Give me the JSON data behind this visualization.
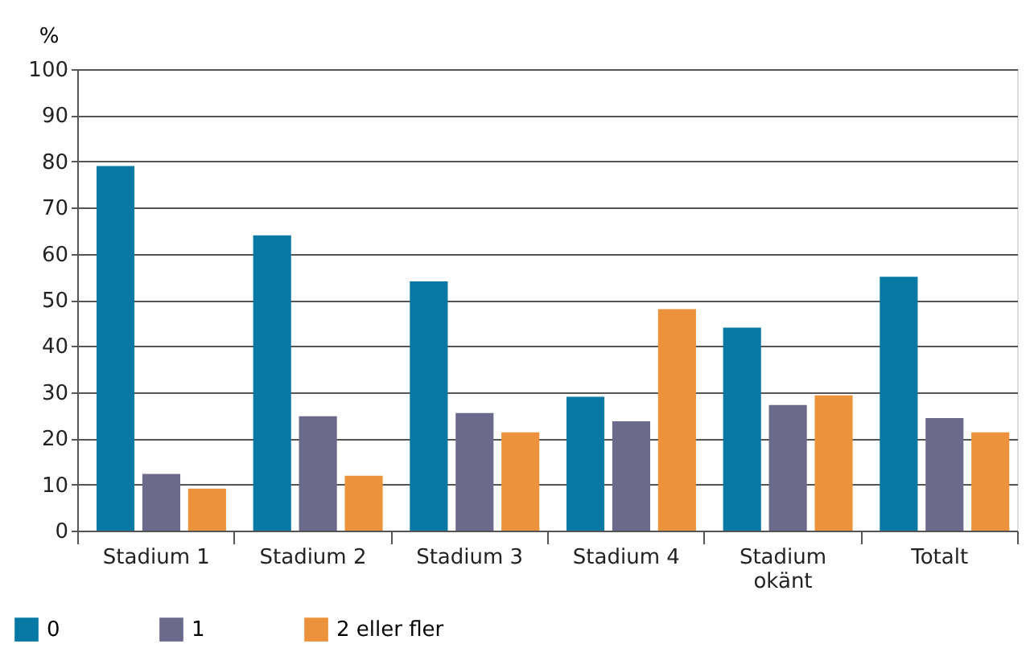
{
  "chart_data": {
    "type": "bar",
    "ylabel": "%",
    "categories": [
      "Stadium 1",
      "Stadium 2",
      "Stadium 3",
      "Stadium 4",
      "Stadium\nokänt",
      "Totalt"
    ],
    "series": [
      {
        "name": "0",
        "color": "#0878a4",
        "values": [
          79,
          64,
          54,
          29,
          44,
          55
        ]
      },
      {
        "name": "1",
        "color": "#6c6a8c",
        "values": [
          12.3,
          24.8,
          25.5,
          23.7,
          27.2,
          24.4
        ]
      },
      {
        "name": "2 eller fler",
        "color": "#ec923c",
        "values": [
          9.1,
          11.9,
          21.3,
          48,
          29.3,
          21.3
        ]
      }
    ],
    "ylim": [
      0,
      100
    ],
    "yticks": [
      0,
      10,
      20,
      30,
      40,
      50,
      60,
      70,
      80,
      90,
      100
    ],
    "grid": "y",
    "legend": "bottom left"
  }
}
